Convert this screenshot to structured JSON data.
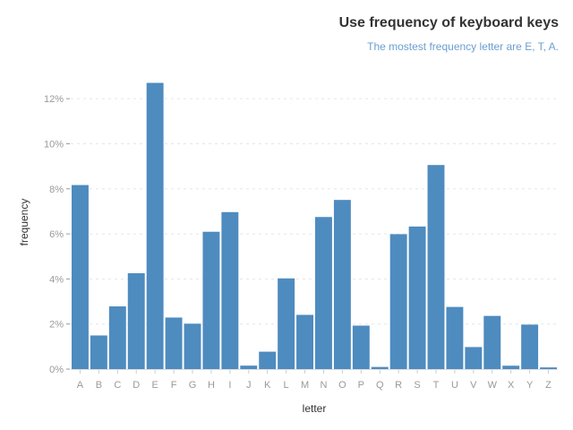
{
  "chart_data": {
    "type": "bar",
    "title": "Use frequency of keyboard keys",
    "subtitle": "The mostest frequency letter are E, T, A.",
    "xlabel": "letter",
    "ylabel": "frequency",
    "categories": [
      "A",
      "B",
      "C",
      "D",
      "E",
      "F",
      "G",
      "H",
      "I",
      "J",
      "K",
      "L",
      "M",
      "N",
      "O",
      "P",
      "Q",
      "R",
      "S",
      "T",
      "U",
      "V",
      "W",
      "X",
      "Y",
      "Z"
    ],
    "values": [
      8.167,
      1.492,
      2.782,
      4.253,
      12.702,
      2.288,
      2.015,
      6.094,
      6.966,
      0.153,
      0.772,
      4.025,
      2.406,
      6.749,
      7.507,
      1.929,
      0.095,
      5.987,
      6.327,
      9.056,
      2.758,
      0.978,
      2.36,
      0.15,
      1.974,
      0.074
    ],
    "yticks": [
      "0%",
      "2%",
      "4%",
      "6%",
      "8%",
      "10%",
      "12%"
    ],
    "ylim": [
      0,
      13
    ],
    "grid": true,
    "bar_color": "#4e8bbf",
    "grid_color": "#e5e5e5"
  }
}
